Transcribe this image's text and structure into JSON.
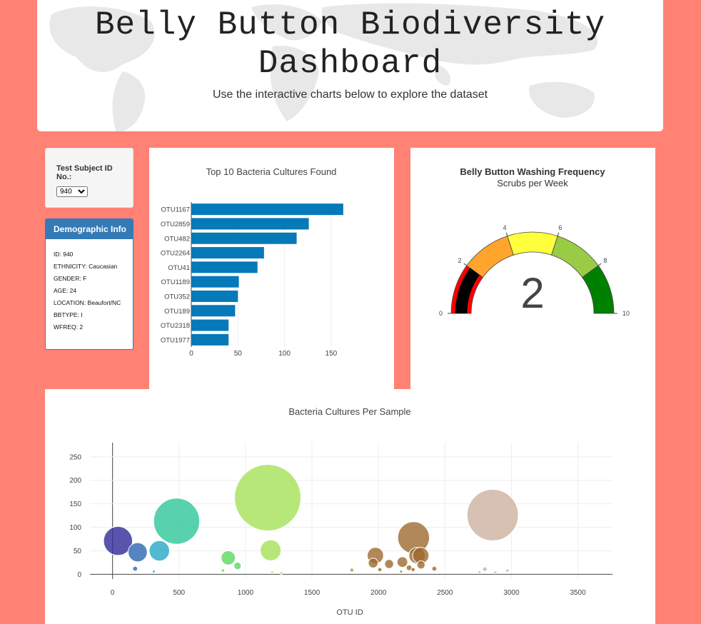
{
  "header": {
    "title": "Belly Button Biodiversity Dashboard",
    "subtitle": "Use the interactive charts below to explore the dataset"
  },
  "selector": {
    "label": "Test Subject ID No.:",
    "selected": "940"
  },
  "demographics": {
    "title": "Demographic Info",
    "id": "ID: 940",
    "ethnicity": "ETHNICITY: Caucasian",
    "gender": "GENDER: F",
    "age": "AGE: 24",
    "location": "LOCATION: Beaufort/NC",
    "bbtype": "BBTYPE: I",
    "wfreq": "WFREQ: 2"
  },
  "colors": {
    "background": "#ff8275",
    "panel_accent": "#337ab7",
    "bar": "#0679b8"
  },
  "chart_data": [
    {
      "type": "bar",
      "orientation": "horizontal",
      "title": "Top 10 Bacteria Cultures Found",
      "categories": [
        "OTU1167",
        "OTU2859",
        "OTU482",
        "OTU2264",
        "OTU41",
        "OTU1189",
        "OTU352",
        "OTU189",
        "OTU2318",
        "OTU1977"
      ],
      "values": [
        163,
        126,
        113,
        78,
        71,
        51,
        50,
        47,
        40,
        40
      ],
      "xlim": [
        0,
        170
      ],
      "xticks": [
        0,
        50,
        100,
        150
      ],
      "grid": true
    },
    {
      "type": "gauge",
      "title": "Belly Button Washing Frequency",
      "subtitle": "Scrubs per Week",
      "value": 2,
      "range": [
        0,
        10
      ],
      "ticks": [
        0,
        2,
        4,
        6,
        8,
        10
      ],
      "bands": [
        {
          "from": 0,
          "to": 2,
          "color": "#ff0000"
        },
        {
          "from": 2,
          "to": 4,
          "color": "#ffa42c"
        },
        {
          "from": 4,
          "to": 6,
          "color": "#ffff3c"
        },
        {
          "from": 6,
          "to": 8,
          "color": "#99cc44"
        },
        {
          "from": 8,
          "to": 10,
          "color": "#008000"
        }
      ],
      "bar_color": "#000000"
    },
    {
      "type": "scatter",
      "title": "Bacteria Cultures Per Sample",
      "xlabel": "OTU ID",
      "xlim": [
        -170,
        3760
      ],
      "ylim": [
        -10,
        280
      ],
      "xticks": [
        0,
        500,
        1000,
        1500,
        2000,
        2500,
        3000,
        3500
      ],
      "yticks": [
        0,
        50,
        100,
        150,
        200,
        250
      ],
      "grid": true,
      "points": [
        {
          "x": 41,
          "y": 71,
          "color": "#2f2b99"
        },
        {
          "x": 189,
          "y": 47,
          "color": "#2a66b2"
        },
        {
          "x": 170,
          "y": 12,
          "color": "#2a66b2"
        },
        {
          "x": 352,
          "y": 50,
          "color": "#25a8c4"
        },
        {
          "x": 310,
          "y": 6,
          "color": "#25a8c4"
        },
        {
          "x": 482,
          "y": 113,
          "color": "#2ec79a"
        },
        {
          "x": 870,
          "y": 35,
          "color": "#5dd85f"
        },
        {
          "x": 940,
          "y": 18,
          "color": "#5dd85f"
        },
        {
          "x": 830,
          "y": 8,
          "color": "#5dd85f"
        },
        {
          "x": 1167,
          "y": 163,
          "color": "#a5e157"
        },
        {
          "x": 1189,
          "y": 51,
          "color": "#a5e157"
        },
        {
          "x": 1200,
          "y": 4,
          "color": "#a5e157"
        },
        {
          "x": 1270,
          "y": 3,
          "color": "#a5e157"
        },
        {
          "x": 1800,
          "y": 9,
          "color": "#b4892e"
        },
        {
          "x": 1977,
          "y": 40,
          "color": "#9d6a2f"
        },
        {
          "x": 1960,
          "y": 24,
          "color": "#9d6a2f"
        },
        {
          "x": 2010,
          "y": 10,
          "color": "#9d6a2f"
        },
        {
          "x": 2080,
          "y": 22,
          "color": "#9d6a2f"
        },
        {
          "x": 2180,
          "y": 26,
          "color": "#9d6a2f"
        },
        {
          "x": 2230,
          "y": 14,
          "color": "#9d6a2f"
        },
        {
          "x": 2264,
          "y": 78,
          "color": "#9d6a2f"
        },
        {
          "x": 2290,
          "y": 40,
          "color": "#9d6a2f"
        },
        {
          "x": 2318,
          "y": 40,
          "color": "#9d6a2f"
        },
        {
          "x": 2260,
          "y": 10,
          "color": "#9d6a2f"
        },
        {
          "x": 2320,
          "y": 20,
          "color": "#9d6a2f"
        },
        {
          "x": 2420,
          "y": 12,
          "color": "#9d6a2f"
        },
        {
          "x": 2170,
          "y": 6,
          "color": "#9d6a2f"
        },
        {
          "x": 2760,
          "y": 5,
          "color": "#cdb19f"
        },
        {
          "x": 2800,
          "y": 11,
          "color": "#cdb19f"
        },
        {
          "x": 2859,
          "y": 126,
          "color": "#cdb19f"
        },
        {
          "x": 2880,
          "y": 4,
          "color": "#cdb19f"
        },
        {
          "x": 2970,
          "y": 8,
          "color": "#cdb19f"
        }
      ]
    }
  ]
}
